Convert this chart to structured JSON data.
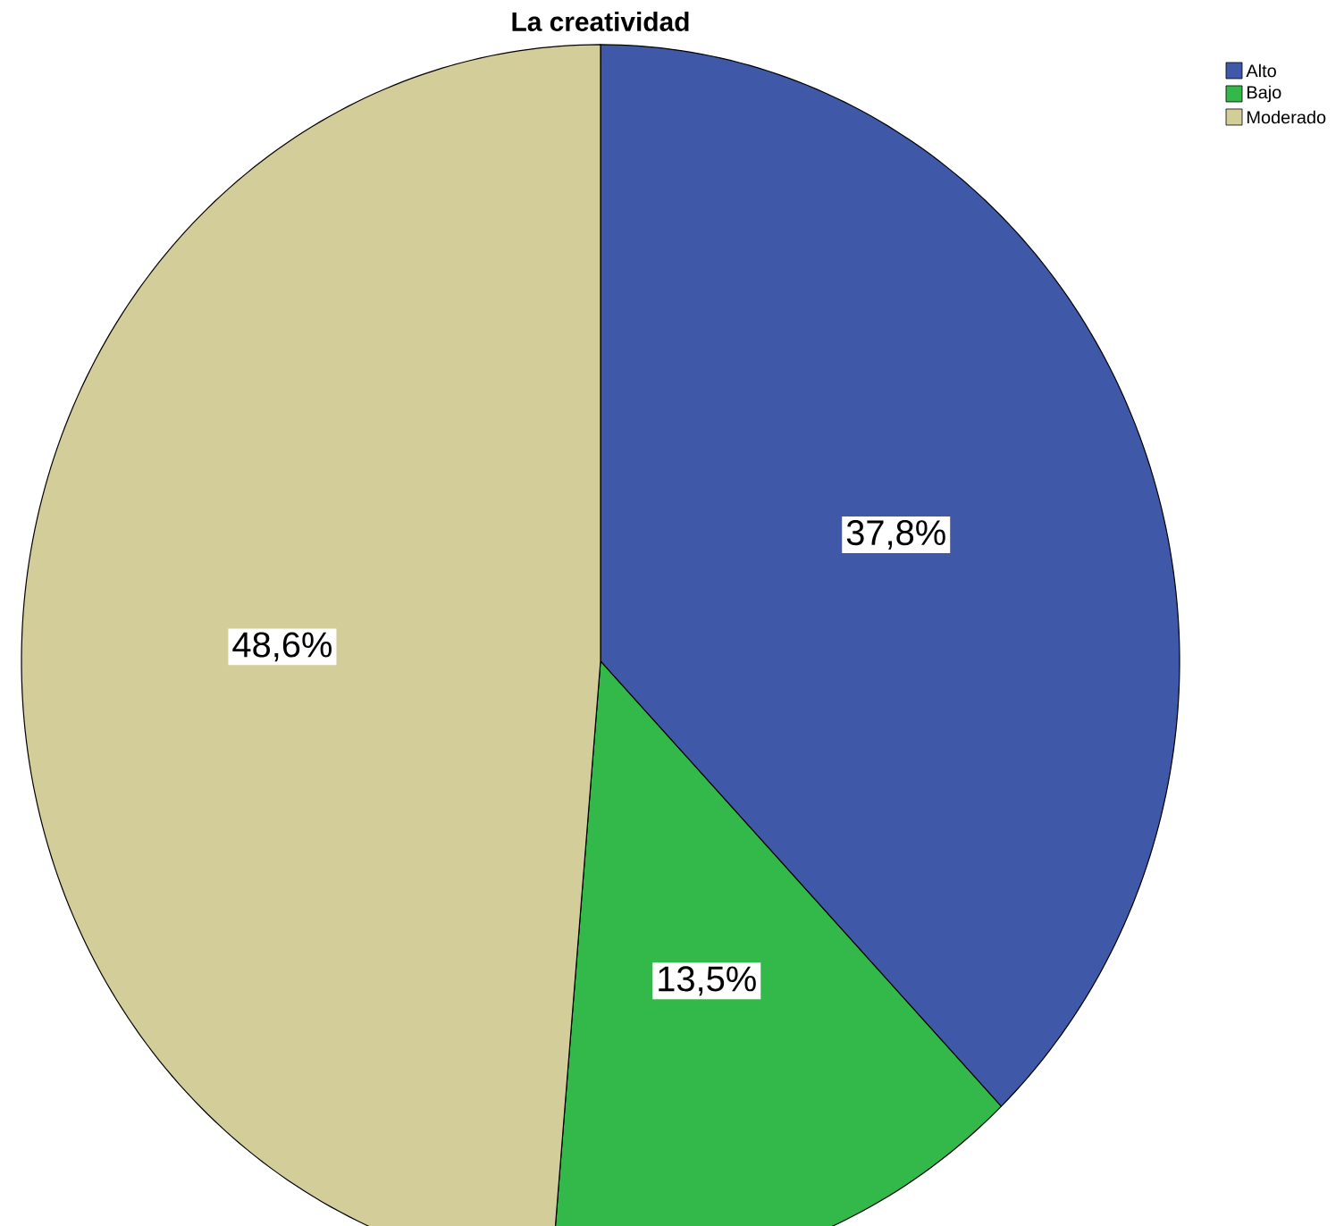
{
  "chart_data": {
    "type": "pie",
    "title": "La creatividad",
    "categories": [
      "Alto",
      "Bajo",
      "Moderado"
    ],
    "values": [
      37.8,
      13.5,
      48.6
    ],
    "value_labels": [
      "37,8%",
      "13,5%",
      "48,6%"
    ],
    "colors": [
      "#3f58a8",
      "#33b94a",
      "#d3cd9a"
    ],
    "legend": "top right"
  }
}
